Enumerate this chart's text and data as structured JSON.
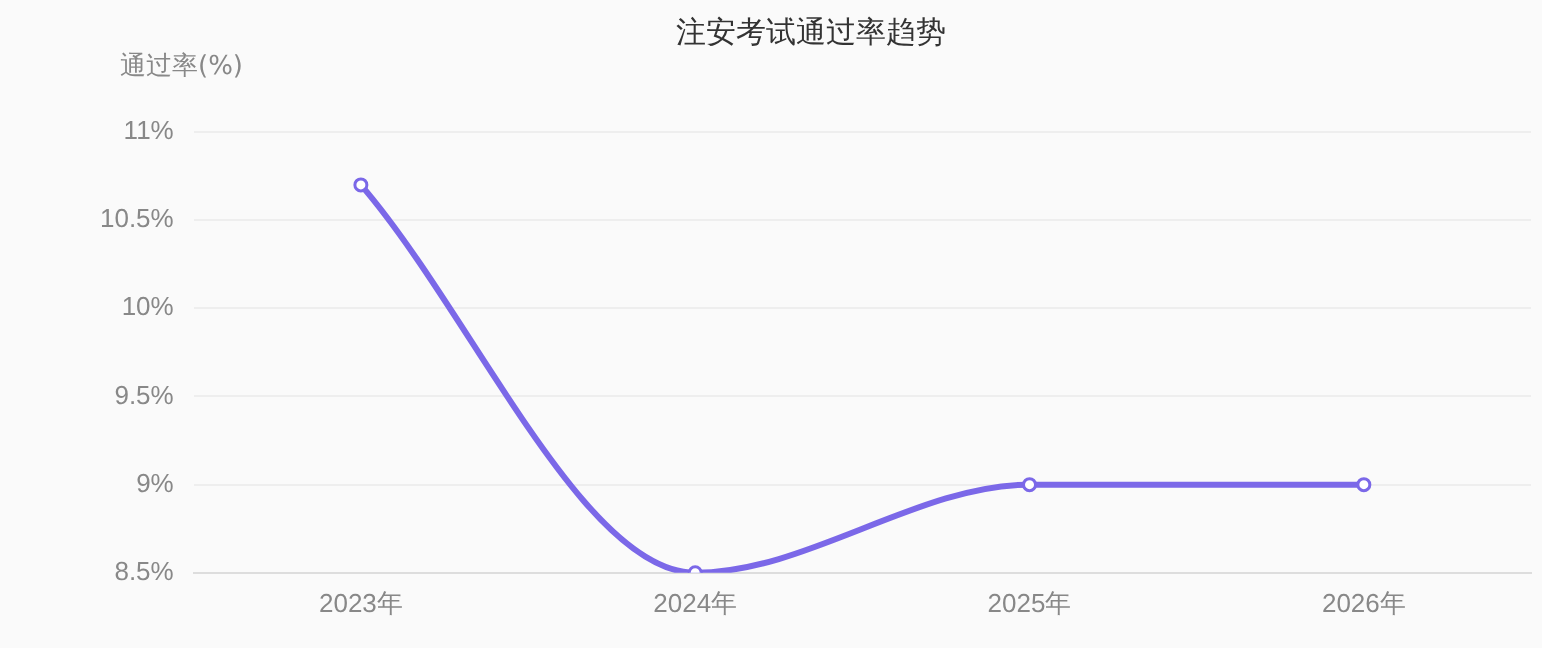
{
  "chart_data": {
    "type": "line",
    "title": "注安考试通过率趋势",
    "ylabel": "通过率(%)",
    "categories": [
      "2023年",
      "2024年",
      "2025年",
      "2026年"
    ],
    "series": [
      {
        "color": "#7b68e8",
        "values": [
          10.7,
          8.5,
          9,
          9
        ]
      }
    ],
    "ylim": [
      8.5,
      11
    ],
    "yticks": [
      {
        "value": 8.5,
        "label": "8.5%"
      },
      {
        "value": 9,
        "label": "9%"
      },
      {
        "value": 9.5,
        "label": "9.5%"
      },
      {
        "value": 10,
        "label": "10%"
      },
      {
        "value": 10.5,
        "label": "10.5%"
      },
      {
        "value": 11,
        "label": "11%"
      }
    ],
    "grid": "y",
    "legend": false,
    "marker": "circle",
    "line_style": "solid"
  }
}
